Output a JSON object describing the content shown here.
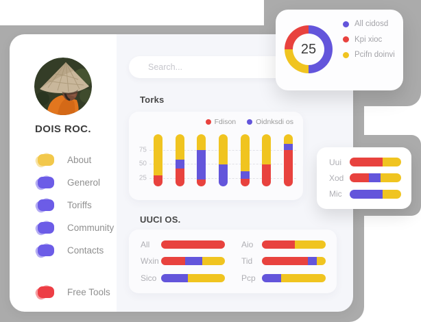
{
  "colors": {
    "red": "#E8423E",
    "purple": "#6355DB",
    "yellow": "#F0C420",
    "backdrop": "#ABABAB"
  },
  "sidebar": {
    "name": "DOIS ROC.",
    "menu": [
      {
        "label": "About",
        "c": "#F2C84B"
      },
      {
        "label": "Generol",
        "c": "#6C5CE7"
      },
      {
        "label": "Toriffs",
        "c": "#6C5CE7"
      },
      {
        "label": "Community",
        "c": "#6C5CE7"
      },
      {
        "label": "Contacts",
        "c": "#6C5CE7"
      }
    ],
    "footer_item": {
      "label": "Free Tools",
      "c": "#ED3E45"
    }
  },
  "search": {
    "placeholder": "Search..."
  },
  "sections": {
    "torks_title": "Torks",
    "uuci_title": "UUCI OS."
  },
  "chart_data": [
    {
      "id": "donut",
      "type": "pie",
      "donut": true,
      "center_label": "25",
      "legend_position": "right",
      "segments": [
        {
          "label": "All cidosd",
          "c": "purple",
          "value": 50
        },
        {
          "label": "Pcifn doinvi",
          "c": "yellow",
          "value": 25
        },
        {
          "label": "Kpi xioc",
          "c": "red",
          "value": 25
        }
      ],
      "legend": [
        {
          "label": "All cidosd",
          "c": "purple"
        },
        {
          "label": "Kpi xioc",
          "c": "red"
        },
        {
          "label": "Pcifn doinvi",
          "c": "yellow"
        }
      ]
    },
    {
      "id": "torks",
      "type": "bar",
      "stacked": true,
      "title": "Torks",
      "legend": [
        {
          "label": "Fdison",
          "c": "red"
        },
        {
          "label": "Oidnksdi os",
          "c": "purple"
        }
      ],
      "yticks": [
        25,
        50,
        75
      ],
      "value_range": [
        10,
        103
      ],
      "grid": "dashed",
      "bars": [
        [
          {
            "c": "red",
            "p": 21
          },
          {
            "c": "yellow",
            "p": 79
          }
        ],
        [
          {
            "c": "red",
            "p": 34
          },
          {
            "c": "purple",
            "p": 18
          },
          {
            "c": "yellow",
            "p": 48
          }
        ],
        [
          {
            "c": "red",
            "p": 13
          },
          {
            "c": "purple",
            "p": 57
          },
          {
            "c": "yellow",
            "p": 30
          }
        ],
        [
          {
            "c": "purple",
            "p": 42
          },
          {
            "c": "yellow",
            "p": 58
          }
        ],
        [
          {
            "c": "red",
            "p": 14
          },
          {
            "c": "purple",
            "p": 15
          },
          {
            "c": "yellow",
            "p": 71
          }
        ],
        [
          {
            "c": "red",
            "p": 42
          },
          {
            "c": "yellow",
            "p": 58
          }
        ],
        [
          {
            "c": "red",
            "p": 70
          },
          {
            "c": "purple",
            "p": 12
          },
          {
            "c": "yellow",
            "p": 18
          }
        ]
      ]
    },
    {
      "id": "uuci",
      "type": "bar",
      "stacked": true,
      "horizontal": true,
      "title": "UUCI OS.",
      "columns": [
        [
          {
            "label": "All",
            "segments": [
              {
                "c": "red",
                "p": 100
              }
            ]
          },
          {
            "label": "Wxin",
            "segments": [
              {
                "c": "red",
                "p": 38
              },
              {
                "c": "purple",
                "p": 26
              },
              {
                "c": "yellow",
                "p": 36
              }
            ]
          },
          {
            "label": "Sico",
            "segments": [
              {
                "c": "purple",
                "p": 42
              },
              {
                "c": "yellow",
                "p": 58
              }
            ]
          }
        ],
        [
          {
            "label": "Aio",
            "segments": [
              {
                "c": "red",
                "p": 52
              },
              {
                "c": "yellow",
                "p": 48
              }
            ]
          },
          {
            "label": "Tid",
            "segments": [
              {
                "c": "red",
                "p": 72
              },
              {
                "c": "purple",
                "p": 14
              },
              {
                "c": "yellow",
                "p": 14
              }
            ]
          },
          {
            "label": "Pcp",
            "segments": [
              {
                "c": "purple",
                "p": 30
              },
              {
                "c": "yellow",
                "p": 70
              }
            ]
          }
        ]
      ]
    },
    {
      "id": "mini",
      "type": "bar",
      "stacked": true,
      "horizontal": true,
      "rows": [
        {
          "label": "Uui",
          "segments": [
            {
              "c": "red",
              "p": 64
            },
            {
              "c": "yellow",
              "p": 36
            }
          ]
        },
        {
          "label": "Xod",
          "segments": [
            {
              "c": "red",
              "p": 37
            },
            {
              "c": "purple",
              "p": 23
            },
            {
              "c": "yellow",
              "p": 40
            }
          ]
        },
        {
          "label": "Mic",
          "segments": [
            {
              "c": "purple",
              "p": 64
            },
            {
              "c": "yellow",
              "p": 36
            }
          ]
        }
      ]
    }
  ]
}
